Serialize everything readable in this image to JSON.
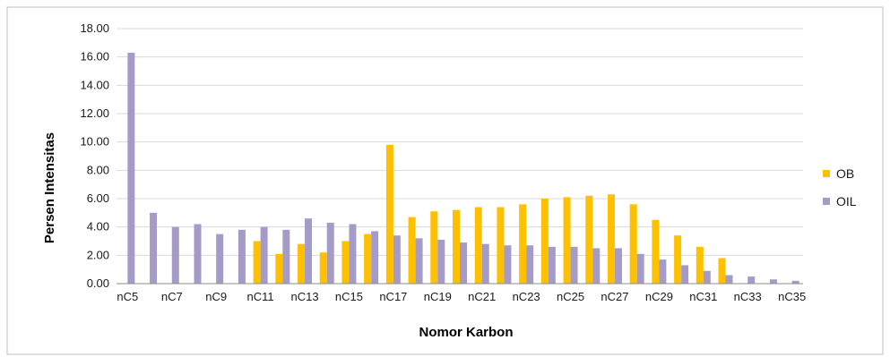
{
  "chart_data": {
    "type": "bar",
    "xlabel": "Nomor Karbon",
    "ylabel": "Persen Intensitas",
    "ylim": [
      0,
      18
    ],
    "y_ticks": [
      "0.00",
      "2.00",
      "4.00",
      "6.00",
      "8.00",
      "10.00",
      "12.00",
      "14.00",
      "16.00",
      "18.00"
    ],
    "categories": [
      "nC5",
      "nC6",
      "nC7",
      "nC8",
      "nC9",
      "nC10",
      "nC11",
      "nC12",
      "nC13",
      "nC14",
      "nC15",
      "nC16",
      "nC17",
      "nC18",
      "nC19",
      "nC20",
      "nC21",
      "nC22",
      "nC23",
      "nC24",
      "nC25",
      "nC26",
      "nC27",
      "nC28",
      "nC29",
      "nC30",
      "nC31",
      "nC32",
      "nC33",
      "nC34",
      "nC35"
    ],
    "x_tick_labels": [
      "nC5",
      "nC7",
      "nC9",
      "nC11",
      "nC13",
      "nC15",
      "nC17",
      "nC19",
      "nC21",
      "nC23",
      "nC25",
      "nC27",
      "nC29",
      "nC31",
      "nC33",
      "nC35"
    ],
    "grid": true,
    "legend_position": "right",
    "series": [
      {
        "name": "OB",
        "color": "#FFC000",
        "values": [
          0,
          0,
          0,
          0,
          0,
          0,
          3.0,
          2.1,
          2.8,
          2.2,
          3.0,
          3.5,
          9.8,
          4.7,
          5.1,
          5.2,
          5.4,
          5.4,
          5.6,
          6.0,
          6.1,
          6.2,
          6.3,
          5.6,
          4.5,
          3.4,
          2.6,
          1.8,
          0,
          0,
          0
        ]
      },
      {
        "name": "OIL",
        "color": "#A59BC8",
        "values": [
          16.3,
          5.0,
          4.0,
          4.2,
          3.5,
          3.8,
          4.0,
          3.8,
          4.6,
          4.3,
          4.2,
          3.7,
          3.4,
          3.2,
          3.1,
          2.9,
          2.8,
          2.7,
          2.7,
          2.6,
          2.6,
          2.5,
          2.5,
          2.1,
          1.7,
          1.3,
          0.9,
          0.6,
          0.5,
          0.3,
          0.2
        ]
      }
    ]
  }
}
